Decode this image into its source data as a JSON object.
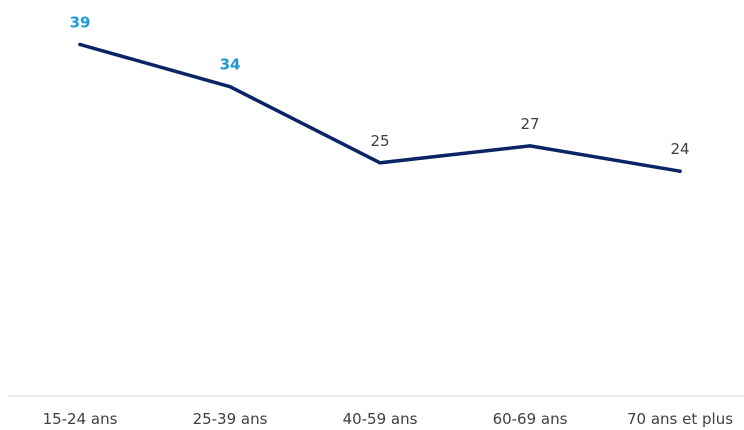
{
  "chart_data": {
    "type": "line",
    "categories": [
      "15-24 ans",
      "25-39 ans",
      "40-59 ans",
      "60-69 ans",
      "70 ans et plus"
    ],
    "series": [
      {
        "values": [
          39,
          34,
          25,
          27,
          24
        ],
        "color": "#0b2466",
        "data_labels": [
          "39",
          "34",
          "25",
          "27",
          "24"
        ],
        "highlighted": [
          true,
          true,
          false,
          false,
          false
        ]
      }
    ],
    "title": "",
    "xlabel": "",
    "ylabel": "",
    "ylim": [
      0,
      43
    ],
    "grid": false,
    "y_axis_visible": false,
    "colors": {
      "line": "#0b2466",
      "highlight_label": "#1a9ad6",
      "normal_label": "#404040",
      "baseline": "#d9d9d9"
    }
  }
}
